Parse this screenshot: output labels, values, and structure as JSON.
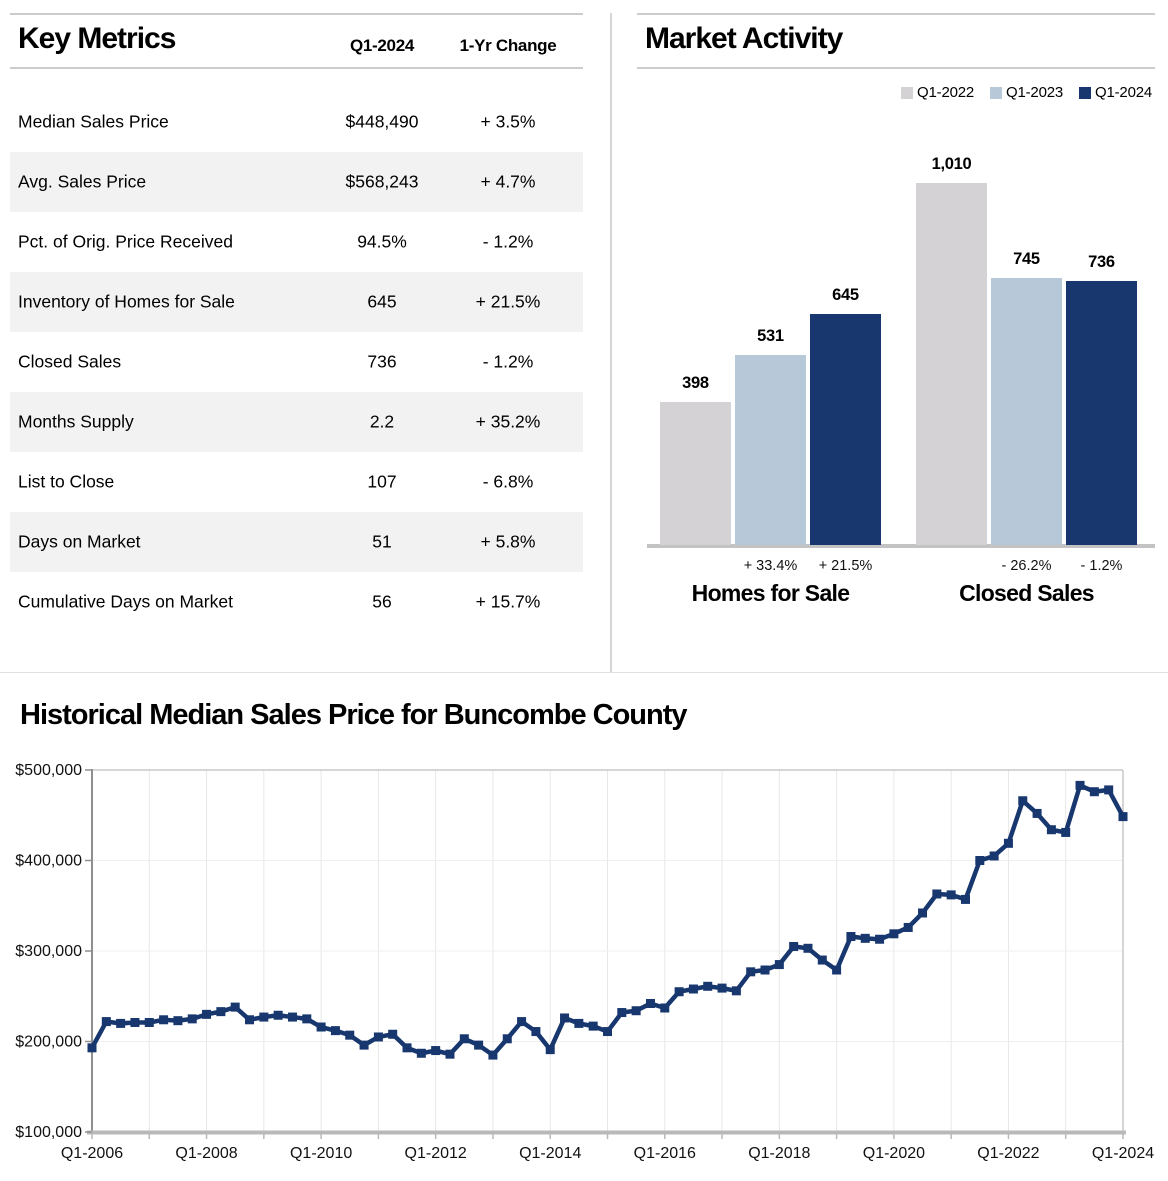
{
  "report": {
    "accent_navy": "#17376e",
    "accent_lightblue": "#b7c9d8",
    "accent_gray": "#d4d2d4"
  },
  "chart_data": [
    {
      "type": "table",
      "title": "Key Metrics",
      "columns": [
        "Q1-2024",
        "1-Yr Change"
      ],
      "rows": [
        {
          "label": "Median Sales Price",
          "value": "$448,490",
          "change": "+ 3.5%"
        },
        {
          "label": "Avg. Sales Price",
          "value": "$568,243",
          "change": "+ 4.7%"
        },
        {
          "label": "Pct. of Orig. Price Received",
          "value": "94.5%",
          "change": "- 1.2%"
        },
        {
          "label": "Inventory of Homes for Sale",
          "value": "645",
          "change": "+ 21.5%"
        },
        {
          "label": "Closed Sales",
          "value": "736",
          "change": "- 1.2%"
        },
        {
          "label": "Months Supply",
          "value": "2.2",
          "change": "+ 35.2%"
        },
        {
          "label": "List to Close",
          "value": "107",
          "change": "- 6.8%"
        },
        {
          "label": "Days on Market",
          "value": "51",
          "change": "+ 5.8%"
        },
        {
          "label": "Cumulative Days on Market",
          "value": "56",
          "change": "+ 15.7%"
        }
      ]
    },
    {
      "type": "bar",
      "title": "Market Activity",
      "legend_position": "top-right",
      "series": [
        {
          "name": "Q1-2022",
          "color": "#d4d2d4"
        },
        {
          "name": "Q1-2023",
          "color": "#b7c9d8"
        },
        {
          "name": "Q1-2024",
          "color": "#17376e"
        }
      ],
      "categories": [
        "Homes for Sale",
        "Closed Sales"
      ],
      "values": [
        [
          398,
          531,
          645
        ],
        [
          1010,
          745,
          736
        ]
      ],
      "bar_labels": [
        [
          "398",
          "531",
          "645"
        ],
        [
          "1,010",
          "745",
          "736"
        ]
      ],
      "change_labels": [
        [
          "",
          "+ 33.4%",
          "+ 21.5%"
        ],
        [
          "",
          "- 26.2%",
          "- 1.2%"
        ]
      ],
      "ylim": [
        0,
        1050
      ]
    },
    {
      "type": "line",
      "title": "Historical Median Sales Price for Buncombe County",
      "x_start": "Q1-2006",
      "x_end": "Q1-2024",
      "x_frequency": "quarterly",
      "x_tick_labels": [
        "Q1-2006",
        "Q1-2008",
        "Q1-2010",
        "Q1-2012",
        "Q1-2014",
        "Q1-2016",
        "Q1-2018",
        "Q1-2020",
        "Q1-2022",
        "Q1-2024"
      ],
      "x_tick_every_quarters": 8,
      "y_tick_values": [
        100000,
        200000,
        300000,
        400000,
        500000
      ],
      "y_tick_labels": [
        "$100,000",
        "$200,000",
        "$300,000",
        "$400,000",
        "$500,000"
      ],
      "ylim": [
        100000,
        500000
      ],
      "grid": true,
      "line_color": "#17376e",
      "values": [
        193000,
        222000,
        220000,
        221000,
        221000,
        224000,
        223000,
        225000,
        230000,
        233000,
        238000,
        224000,
        227000,
        229000,
        227000,
        225000,
        216000,
        212000,
        207000,
        196000,
        205000,
        208000,
        193000,
        187000,
        190000,
        186000,
        203000,
        196000,
        185000,
        203000,
        222000,
        211000,
        191000,
        226000,
        220000,
        217000,
        211000,
        232000,
        234000,
        242000,
        237000,
        255000,
        258000,
        261000,
        259000,
        256000,
        277000,
        279000,
        285000,
        305000,
        303000,
        290000,
        279000,
        316000,
        314000,
        313000,
        319000,
        326000,
        342000,
        363000,
        362000,
        357000,
        400000,
        405000,
        419000,
        466000,
        452000,
        434000,
        431000,
        483000,
        476000,
        478000,
        448490
      ]
    }
  ]
}
